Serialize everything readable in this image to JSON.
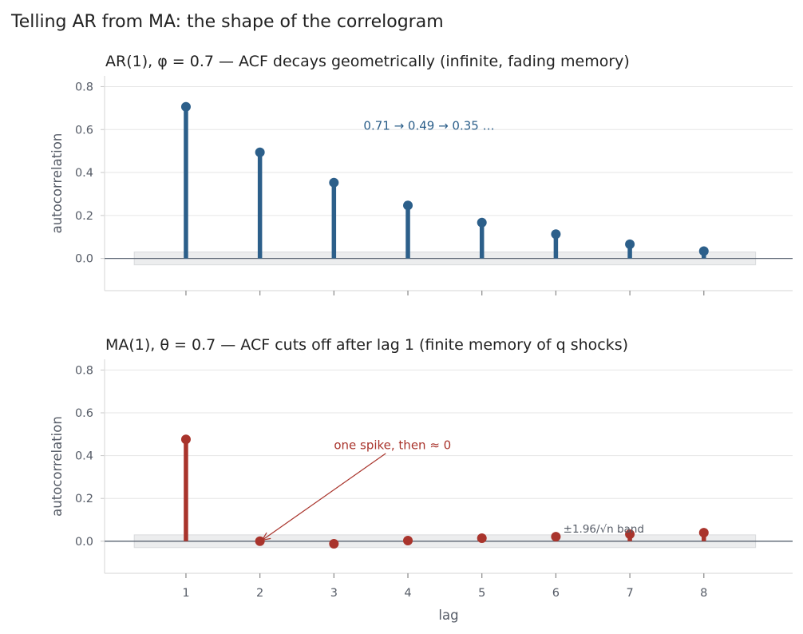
{
  "figure": {
    "title": "Telling AR from MA: the shape of the correlogram"
  },
  "chart_data": [
    {
      "type": "stem",
      "title": "AR(1), φ = 0.7 — ACF decays geometrically (infinite, fading memory)",
      "xlabel": "",
      "ylabel": "autocorrelation",
      "x": [
        1,
        2,
        3,
        4,
        5,
        6,
        7,
        8
      ],
      "values": [
        0.706,
        0.494,
        0.353,
        0.247,
        0.167,
        0.113,
        0.066,
        0.034
      ],
      "xlim": [
        -0.1,
        9.2
      ],
      "ylim": [
        -0.15,
        0.85
      ],
      "yticks": [
        "0.0",
        "0.2",
        "0.4",
        "0.6",
        "0.8"
      ],
      "ytick_values": [
        0.0,
        0.2,
        0.4,
        0.6,
        0.8
      ],
      "xticks": [
        1,
        2,
        3,
        4,
        5,
        6,
        7,
        8
      ],
      "show_xtick_labels": false,
      "band": 0.03,
      "band_xrange": [
        0.3,
        8.7
      ],
      "color": "#2c5f8a",
      "grid": "horizontal",
      "annotations": [
        {
          "text": "0.71 → 0.49 → 0.35 …",
          "x": 3.4,
          "y": 0.6,
          "arrow": false
        }
      ]
    },
    {
      "type": "stem",
      "title": "MA(1), θ = 0.7 — ACF cuts off after lag 1 (finite memory of q shocks)",
      "xlabel": "lag",
      "ylabel": "autocorrelation",
      "x": [
        1,
        2,
        3,
        4,
        5,
        6,
        7,
        8
      ],
      "values": [
        0.476,
        0.0,
        -0.012,
        0.003,
        0.014,
        0.021,
        0.033,
        0.04
      ],
      "xlim": [
        -0.1,
        9.2
      ],
      "ylim": [
        -0.15,
        0.85
      ],
      "yticks": [
        "0.0",
        "0.2",
        "0.4",
        "0.6",
        "0.8"
      ],
      "ytick_values": [
        0.0,
        0.2,
        0.4,
        0.6,
        0.8
      ],
      "xticks": [
        1,
        2,
        3,
        4,
        5,
        6,
        7,
        8
      ],
      "xtick_labels": [
        "1",
        "2",
        "3",
        "4",
        "5",
        "6",
        "7",
        "8"
      ],
      "show_xtick_labels": true,
      "band": 0.03,
      "band_xrange": [
        0.3,
        8.7
      ],
      "color": "#a9342c",
      "grid": "horizontal",
      "annotations": [
        {
          "text": "one spike, then ≈ 0",
          "x": 3.0,
          "y": 0.43,
          "arrow": true,
          "arrow_to": [
            2.03,
            0.005
          ],
          "arrow_from": [
            3.7,
            0.41
          ]
        },
        {
          "text": "±1.96/√n band",
          "x": 6.1,
          "y": 0.04,
          "arrow": false,
          "style": "small"
        }
      ]
    }
  ]
}
